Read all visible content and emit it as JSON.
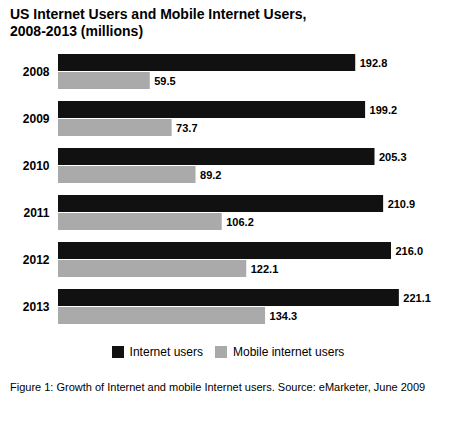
{
  "chart_data": {
    "type": "bar",
    "title": "US Internet Users and Mobile Internet Users,\n2008-2013 (millions)",
    "caption": "Figure 1: Growth of Internet and mobile Internet users. Source: eMarketer, June 2009",
    "orientation": "horizontal",
    "categories": [
      "2008",
      "2009",
      "2010",
      "2011",
      "2012",
      "2013"
    ],
    "series": [
      {
        "name": "Internet users",
        "color": "#111111",
        "values": [
          192.8,
          199.2,
          205.3,
          210.9,
          216.0,
          221.1
        ],
        "value_labels": [
          "192.8",
          "199.2",
          "205.3",
          "210.9",
          "216.0",
          "221.1"
        ]
      },
      {
        "name": "Mobile internet users",
        "color": "#aaaaaa",
        "values": [
          59.5,
          73.7,
          89.2,
          106.2,
          122.1,
          134.3
        ]
      }
    ],
    "xlim": [
      0,
      240
    ],
    "grid": false,
    "legend": "bottom",
    "data_labels": true,
    "tick_labels": "y"
  }
}
